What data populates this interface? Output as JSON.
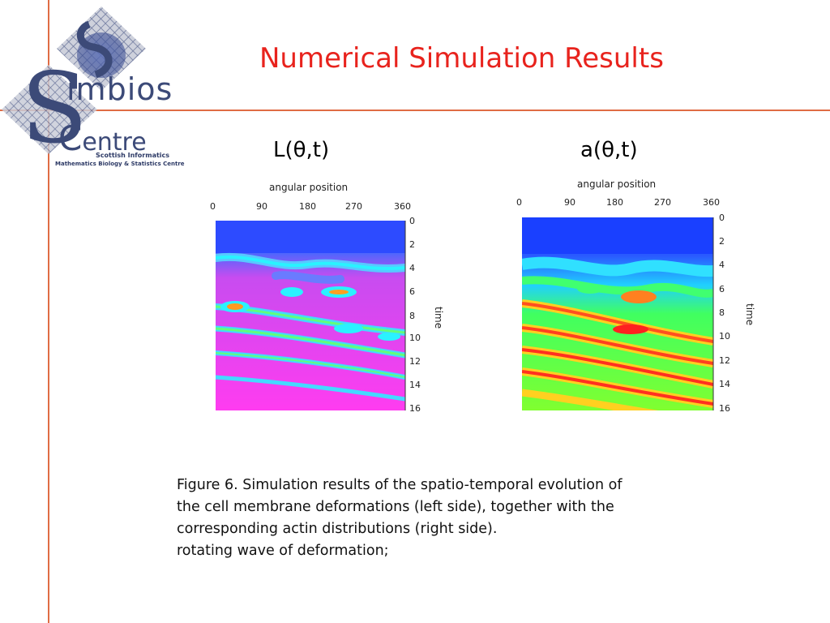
{
  "slide": {
    "title": "Numerical Simulation Results",
    "accent_color": "#e06c44",
    "title_color": "#e8231d"
  },
  "logo": {
    "line1": "imbios",
    "line2": "entre",
    "sub1": "Scottish Informatics",
    "sub2": "Mathematics Biology & Statistics Centre"
  },
  "figures": [
    {
      "label": "L(θ,t)",
      "x_axis_title": "angular position",
      "x_ticks": [
        "0",
        "90",
        "180",
        "270",
        "360"
      ],
      "y_axis_title": "time",
      "y_ticks": [
        "0",
        "2",
        "4",
        "6",
        "8",
        "10",
        "12",
        "14",
        "16"
      ],
      "colormap": "blue-cyan-magenta"
    },
    {
      "label": "a(θ,t)",
      "x_axis_title": "angular position",
      "x_ticks": [
        "0",
        "90",
        "180",
        "270",
        "360"
      ],
      "y_axis_title": "time",
      "y_ticks": [
        "0",
        "2",
        "4",
        "6",
        "8",
        "10",
        "12",
        "14",
        "16"
      ],
      "colormap": "blue-green-red"
    }
  ],
  "caption": {
    "line1": "Figure 6. Simulation results of the spatio-temporal evolution of",
    "line2": "the cell membrane deformations (left side), together with the",
    "line3": "corresponding actin distributions (right side).",
    "line4": "rotating wave of deformation;"
  }
}
